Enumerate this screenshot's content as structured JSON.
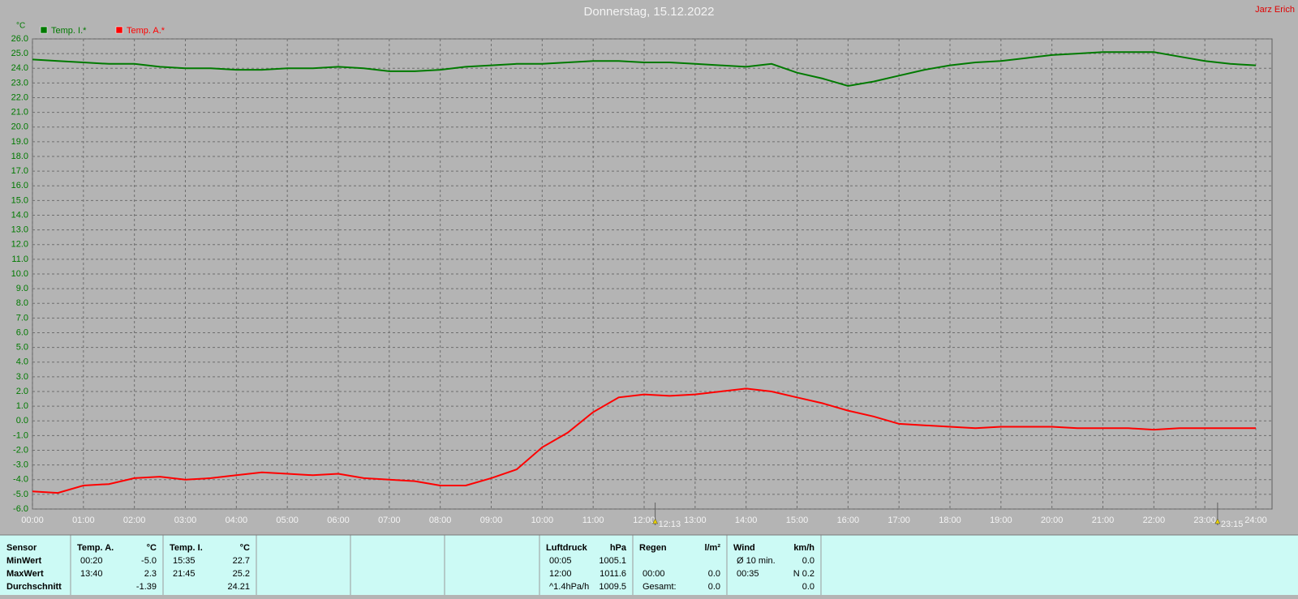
{
  "chart_data": {
    "type": "line",
    "title": "Donnerstag, 15.12.2022",
    "author": "Jarz Erich",
    "y_unit": "°C",
    "x": [
      0,
      0.5,
      1,
      1.5,
      2,
      2.5,
      3,
      3.5,
      4,
      4.5,
      5,
      5.5,
      6,
      6.5,
      7,
      7.5,
      8,
      8.5,
      9,
      9.5,
      10,
      10.5,
      11,
      11.5,
      12,
      12.5,
      13,
      13.5,
      14,
      14.5,
      15,
      15.5,
      16,
      16.5,
      17,
      17.5,
      18,
      18.5,
      19,
      19.5,
      20,
      20.5,
      21,
      21.5,
      22,
      22.5,
      23,
      23.5,
      24
    ],
    "series": [
      {
        "name": "Temp. I.*",
        "color": "#007a00",
        "values": [
          24.6,
          24.5,
          24.4,
          24.3,
          24.3,
          24.1,
          24.0,
          24.0,
          23.9,
          23.9,
          24.0,
          24.0,
          24.1,
          24.0,
          23.8,
          23.8,
          23.9,
          24.1,
          24.2,
          24.3,
          24.3,
          24.4,
          24.5,
          24.5,
          24.4,
          24.4,
          24.3,
          24.2,
          24.1,
          24.3,
          23.7,
          23.3,
          22.8,
          23.1,
          23.5,
          23.9,
          24.2,
          24.4,
          24.5,
          24.7,
          24.9,
          25.0,
          25.1,
          25.1,
          25.1,
          24.8,
          24.5,
          24.3,
          24.2
        ]
      },
      {
        "name": "Temp. A.*",
        "color": "#ff0000",
        "values": [
          -4.8,
          -4.9,
          -4.4,
          -4.3,
          -3.9,
          -3.8,
          -4.0,
          -3.9,
          -3.7,
          -3.5,
          -3.6,
          -3.7,
          -3.6,
          -3.9,
          -4.0,
          -4.1,
          -4.4,
          -4.4,
          -3.9,
          -3.3,
          -1.8,
          -0.8,
          0.6,
          1.6,
          1.8,
          1.7,
          1.8,
          2.0,
          2.2,
          2.0,
          1.6,
          1.2,
          0.7,
          0.3,
          -0.2,
          -0.3,
          -0.4,
          -0.5,
          -0.4,
          -0.4,
          -0.4,
          -0.5,
          -0.5,
          -0.5,
          -0.6,
          -0.5,
          -0.5,
          -0.5,
          -0.5
        ]
      }
    ],
    "xlim": [
      0,
      24
    ],
    "xticks": [
      {
        "value": 0,
        "label": "00:00"
      },
      {
        "value": 1,
        "label": "01:00"
      },
      {
        "value": 2,
        "label": "02:00"
      },
      {
        "value": 3,
        "label": "03:00"
      },
      {
        "value": 4,
        "label": "04:00"
      },
      {
        "value": 5,
        "label": "05:00"
      },
      {
        "value": 6,
        "label": "06:00"
      },
      {
        "value": 7,
        "label": "07:00"
      },
      {
        "value": 8,
        "label": "08:00"
      },
      {
        "value": 9,
        "label": "09:00"
      },
      {
        "value": 10,
        "label": "10:00"
      },
      {
        "value": 11,
        "label": "11:00"
      },
      {
        "value": 12,
        "label": "12:00"
      },
      {
        "value": 13,
        "label": "13:00"
      },
      {
        "value": 14,
        "label": "14:00"
      },
      {
        "value": 15,
        "label": "15:00"
      },
      {
        "value": 16,
        "label": "16:00"
      },
      {
        "value": 17,
        "label": "17:00"
      },
      {
        "value": 18,
        "label": "18:00"
      },
      {
        "value": 19,
        "label": "19:00"
      },
      {
        "value": 20,
        "label": "20:00"
      },
      {
        "value": 21,
        "label": "21:00"
      },
      {
        "value": 22,
        "label": "22:00"
      },
      {
        "value": 23,
        "label": "23:00"
      },
      {
        "value": 24,
        "label": "24:00"
      }
    ],
    "ylim": [
      -6,
      26
    ],
    "yticks": [
      {
        "value": -6,
        "label": "-6.0"
      },
      {
        "value": -5,
        "label": "-5.0"
      },
      {
        "value": -4,
        "label": "-4.0"
      },
      {
        "value": -3,
        "label": "-3.0"
      },
      {
        "value": -2,
        "label": "-2.0"
      },
      {
        "value": -1,
        "label": "-1.0"
      },
      {
        "value": 0,
        "label": "0.0"
      },
      {
        "value": 1,
        "label": "1.0"
      },
      {
        "value": 2,
        "label": "2.0"
      },
      {
        "value": 3,
        "label": "3.0"
      },
      {
        "value": 4,
        "label": "4.0"
      },
      {
        "value": 5,
        "label": "5.0"
      },
      {
        "value": 6,
        "label": "6.0"
      },
      {
        "value": 7,
        "label": "7.0"
      },
      {
        "value": 8,
        "label": "8.0"
      },
      {
        "value": 9,
        "label": "9.0"
      },
      {
        "value": 10,
        "label": "10.0"
      },
      {
        "value": 11,
        "label": "11.0"
      },
      {
        "value": 12,
        "label": "12.0"
      },
      {
        "value": 13,
        "label": "13.0"
      },
      {
        "value": 14,
        "label": "14.0"
      },
      {
        "value": 15,
        "label": "15.0"
      },
      {
        "value": 16,
        "label": "16.0"
      },
      {
        "value": 17,
        "label": "17.0"
      },
      {
        "value": 18,
        "label": "18.0"
      },
      {
        "value": 19,
        "label": "19.0"
      },
      {
        "value": 20,
        "label": "20.0"
      },
      {
        "value": 21,
        "label": "21.0"
      },
      {
        "value": 22,
        "label": "22.0"
      },
      {
        "value": 23,
        "label": "23.0"
      },
      {
        "value": 24,
        "label": "24.0"
      },
      {
        "value": 25,
        "label": "25.0"
      },
      {
        "value": 26,
        "label": "26.0"
      }
    ],
    "grid": true,
    "annotations": [
      {
        "label": "12:13",
        "x": 12.2167
      },
      {
        "label": "23:15",
        "x": 23.25
      }
    ]
  },
  "table": {
    "panels": [
      {
        "header": [
          "Sensor"
        ],
        "rows": [
          [
            "MinWert"
          ],
          [
            "MaxWert"
          ],
          [
            "Durchschnitt"
          ]
        ]
      },
      {
        "header": [
          "Temp. A.",
          "°C"
        ],
        "rows": [
          [
            "00:20",
            "-5.0"
          ],
          [
            "13:40",
            "2.3"
          ],
          [
            "-1.39"
          ]
        ]
      },
      {
        "header": [
          "Temp. I.",
          "°C"
        ],
        "rows": [
          [
            "15:35",
            "22.7"
          ],
          [
            "21:45",
            "25.2"
          ],
          [
            "24.21"
          ]
        ]
      },
      {
        "header": [
          "Luftdruck",
          "hPa"
        ],
        "rows": [
          [
            "00:05",
            "1005.1"
          ],
          [
            "12:00",
            "1011.6"
          ],
          [
            "^1.4hPa/h",
            "1009.5"
          ]
        ]
      },
      {
        "header": [
          "Regen",
          "l/m²"
        ],
        "rows": [
          [],
          [
            "00:00",
            "0.0"
          ],
          [
            "Gesamt:",
            "0.0"
          ]
        ]
      },
      {
        "header": [
          "Wind",
          "km/h"
        ],
        "rows": [
          [
            "Ø 10 min.",
            "0.0"
          ],
          [
            "00:35",
            "N 0.2"
          ],
          [
            "0.0"
          ]
        ]
      }
    ]
  }
}
